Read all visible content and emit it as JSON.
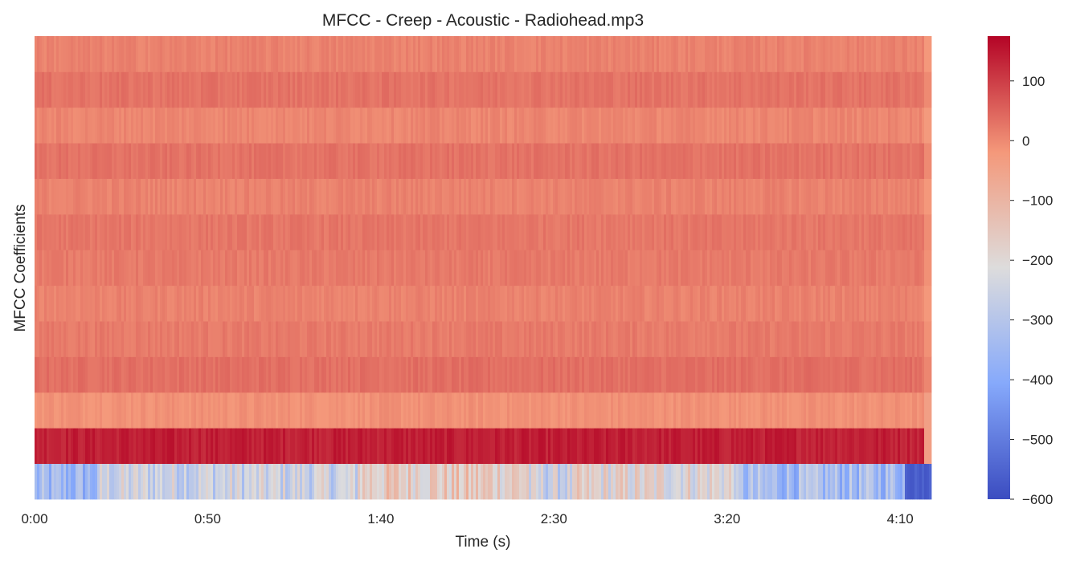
{
  "chart_data": {
    "type": "heatmap",
    "title": "MFCC - Creep - Acoustic - Radiohead.mp3",
    "xlabel": "Time (s)",
    "ylabel": "MFCC Coefficients",
    "x_range_seconds": [
      0,
      259
    ],
    "x_ticks": [
      {
        "value": 0,
        "label": "0:00"
      },
      {
        "value": 50,
        "label": "0:50"
      },
      {
        "value": 100,
        "label": "1:40"
      },
      {
        "value": 150,
        "label": "2:30"
      },
      {
        "value": 200,
        "label": "3:20"
      },
      {
        "value": 250,
        "label": "4:10"
      }
    ],
    "n_coefficients": 13,
    "colormap": "coolwarm",
    "color_range": [
      -600,
      175
    ],
    "colorbar_ticks": [
      {
        "value": 100,
        "label": "100"
      },
      {
        "value": 0,
        "label": "0"
      },
      {
        "value": -100,
        "label": "−100"
      },
      {
        "value": -200,
        "label": "−200"
      },
      {
        "value": -300,
        "label": "−300"
      },
      {
        "value": -400,
        "label": "−400"
      },
      {
        "value": -500,
        "label": "−500"
      },
      {
        "value": -600,
        "label": "−600"
      }
    ],
    "coefficient_means": [
      {
        "index": 0,
        "mean": -250,
        "spread": 90
      },
      {
        "index": 1,
        "mean": 140,
        "spread": 20
      },
      {
        "index": 2,
        "mean": -10,
        "spread": 12
      },
      {
        "index": 3,
        "mean": 35,
        "spread": 12
      },
      {
        "index": 4,
        "mean": 20,
        "spread": 12
      },
      {
        "index": 5,
        "mean": 10,
        "spread": 12
      },
      {
        "index": 6,
        "mean": 20,
        "spread": 12
      },
      {
        "index": 7,
        "mean": 25,
        "spread": 12
      },
      {
        "index": 8,
        "mean": 10,
        "spread": 12
      },
      {
        "index": 9,
        "mean": 30,
        "spread": 12
      },
      {
        "index": 10,
        "mean": 5,
        "spread": 12
      },
      {
        "index": 11,
        "mean": 30,
        "spread": 12
      },
      {
        "index": 12,
        "mean": 10,
        "spread": 12
      }
    ],
    "grid": false
  }
}
